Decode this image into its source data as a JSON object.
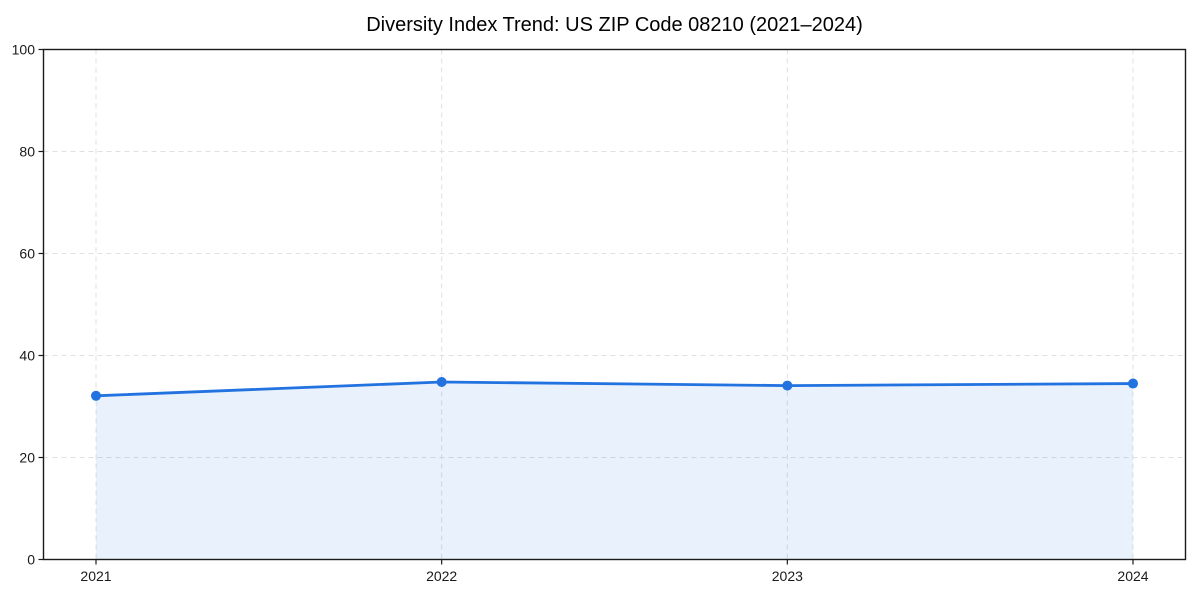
{
  "figure": {
    "background": "#ffffff"
  },
  "chart_data": {
    "type": "area",
    "title": "Diversity Index Trend: US ZIP Code 08210 (2021–2024)",
    "x": [
      "2021",
      "2022",
      "2023",
      "2024"
    ],
    "series": [
      {
        "name": "Diversity Index",
        "values": [
          32.1,
          34.8,
          34.1,
          34.5
        ]
      }
    ],
    "xlabel": "",
    "ylabel": "",
    "ylim": [
      0,
      100
    ],
    "yticks": [
      0,
      20,
      40,
      60,
      80,
      100
    ],
    "grid": "dashed",
    "legend": "none",
    "colors": {
      "line": "#2272e0",
      "marker": "#2272e0",
      "fill": "#2272e0",
      "fill_opacity": 0.1,
      "grid": "#e0e0e0",
      "axis": "#1a1a1a",
      "tick_label": "#1a1a1a",
      "title": "#000000"
    }
  }
}
